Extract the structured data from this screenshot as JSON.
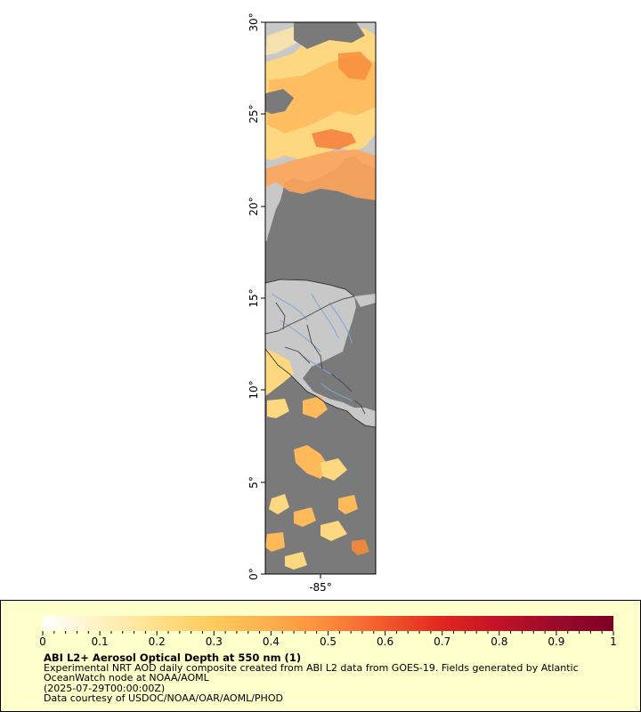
{
  "map": {
    "lat_ticks": [
      "0°",
      "5°",
      "10°",
      "15°",
      "20°",
      "25°",
      "30°"
    ],
    "lon_ticks": [
      "-85°"
    ],
    "colors": {
      "ocean": "#7a7a7a",
      "land": "#c8c8c8",
      "rivers": "#7fa6d6",
      "borders": "#444444",
      "coast": "#222222"
    }
  },
  "legend": {
    "ticks": [
      "0",
      "0.1",
      "0.2",
      "0.3",
      "0.4",
      "0.5",
      "0.6",
      "0.7",
      "0.8",
      "0.9",
      "1"
    ],
    "colorscale": [
      "#ffffff",
      "#fff2c2",
      "#ffe08a",
      "#ffca5c",
      "#fdae4e",
      "#fb8a3c",
      "#f3582c",
      "#e0261f",
      "#c21227",
      "#9a0a2a",
      "#800026"
    ],
    "title": "ABI L2+ Aerosol Optical Depth at 550 nm (1)",
    "description": "Experimental NRT AOD daily composite created from ABI L2 data from GOES-19. Fields generated by Atlantic OceanWatch node at NOAA/AOML",
    "time": "(2025-07-29T00:00:00Z)",
    "credit": "Data courtesy of USDOC/NOAA/OAR/AOML/PHOD"
  }
}
